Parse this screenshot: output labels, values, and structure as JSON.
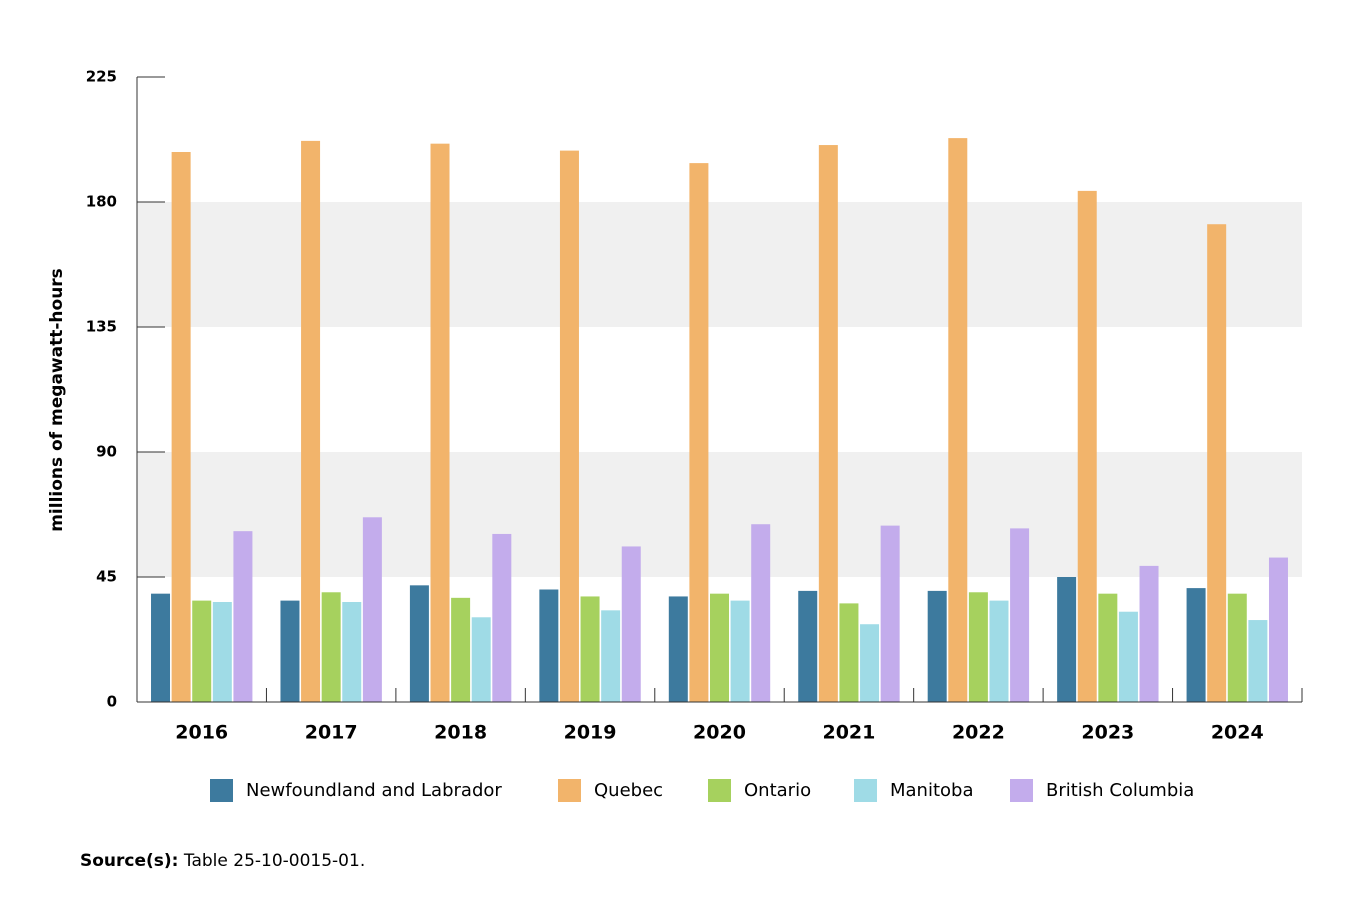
{
  "chart_data": {
    "type": "bar",
    "y_label": "millions of megawatt-hours",
    "categories": [
      "2016",
      "2017",
      "2018",
      "2019",
      "2020",
      "2021",
      "2022",
      "2023",
      "2024"
    ],
    "series": [
      {
        "name": "Newfoundland and Labrador",
        "color": "#3d7a9e",
        "values": [
          39,
          36.5,
          42,
          40.5,
          38,
          40,
          40,
          45,
          41
        ]
      },
      {
        "name": "Quebec",
        "color": "#f2b46b",
        "values": [
          198,
          202,
          201,
          198.5,
          194,
          200.5,
          203,
          184,
          172
        ]
      },
      {
        "name": "Ontario",
        "color": "#a6d15e",
        "values": [
          36.5,
          39.5,
          37.5,
          38,
          39,
          35.5,
          39.5,
          39,
          39
        ]
      },
      {
        "name": "Manitoba",
        "color": "#9fdbe6",
        "values": [
          36,
          36,
          30.5,
          33,
          36.5,
          28,
          36.5,
          32.5,
          29.5
        ]
      },
      {
        "name": "British Columbia",
        "color": "#c3acec",
        "values": [
          61.5,
          66.5,
          60.5,
          56,
          64,
          63.5,
          62.5,
          49,
          52
        ]
      }
    ],
    "ylim": [
      0,
      225
    ],
    "yticks": [
      0,
      45,
      90,
      135,
      180,
      225
    ],
    "grid": true,
    "legend": "bottom",
    "source": {
      "label": "Source(s):",
      "text": "Table 25-10-0015-01."
    }
  }
}
